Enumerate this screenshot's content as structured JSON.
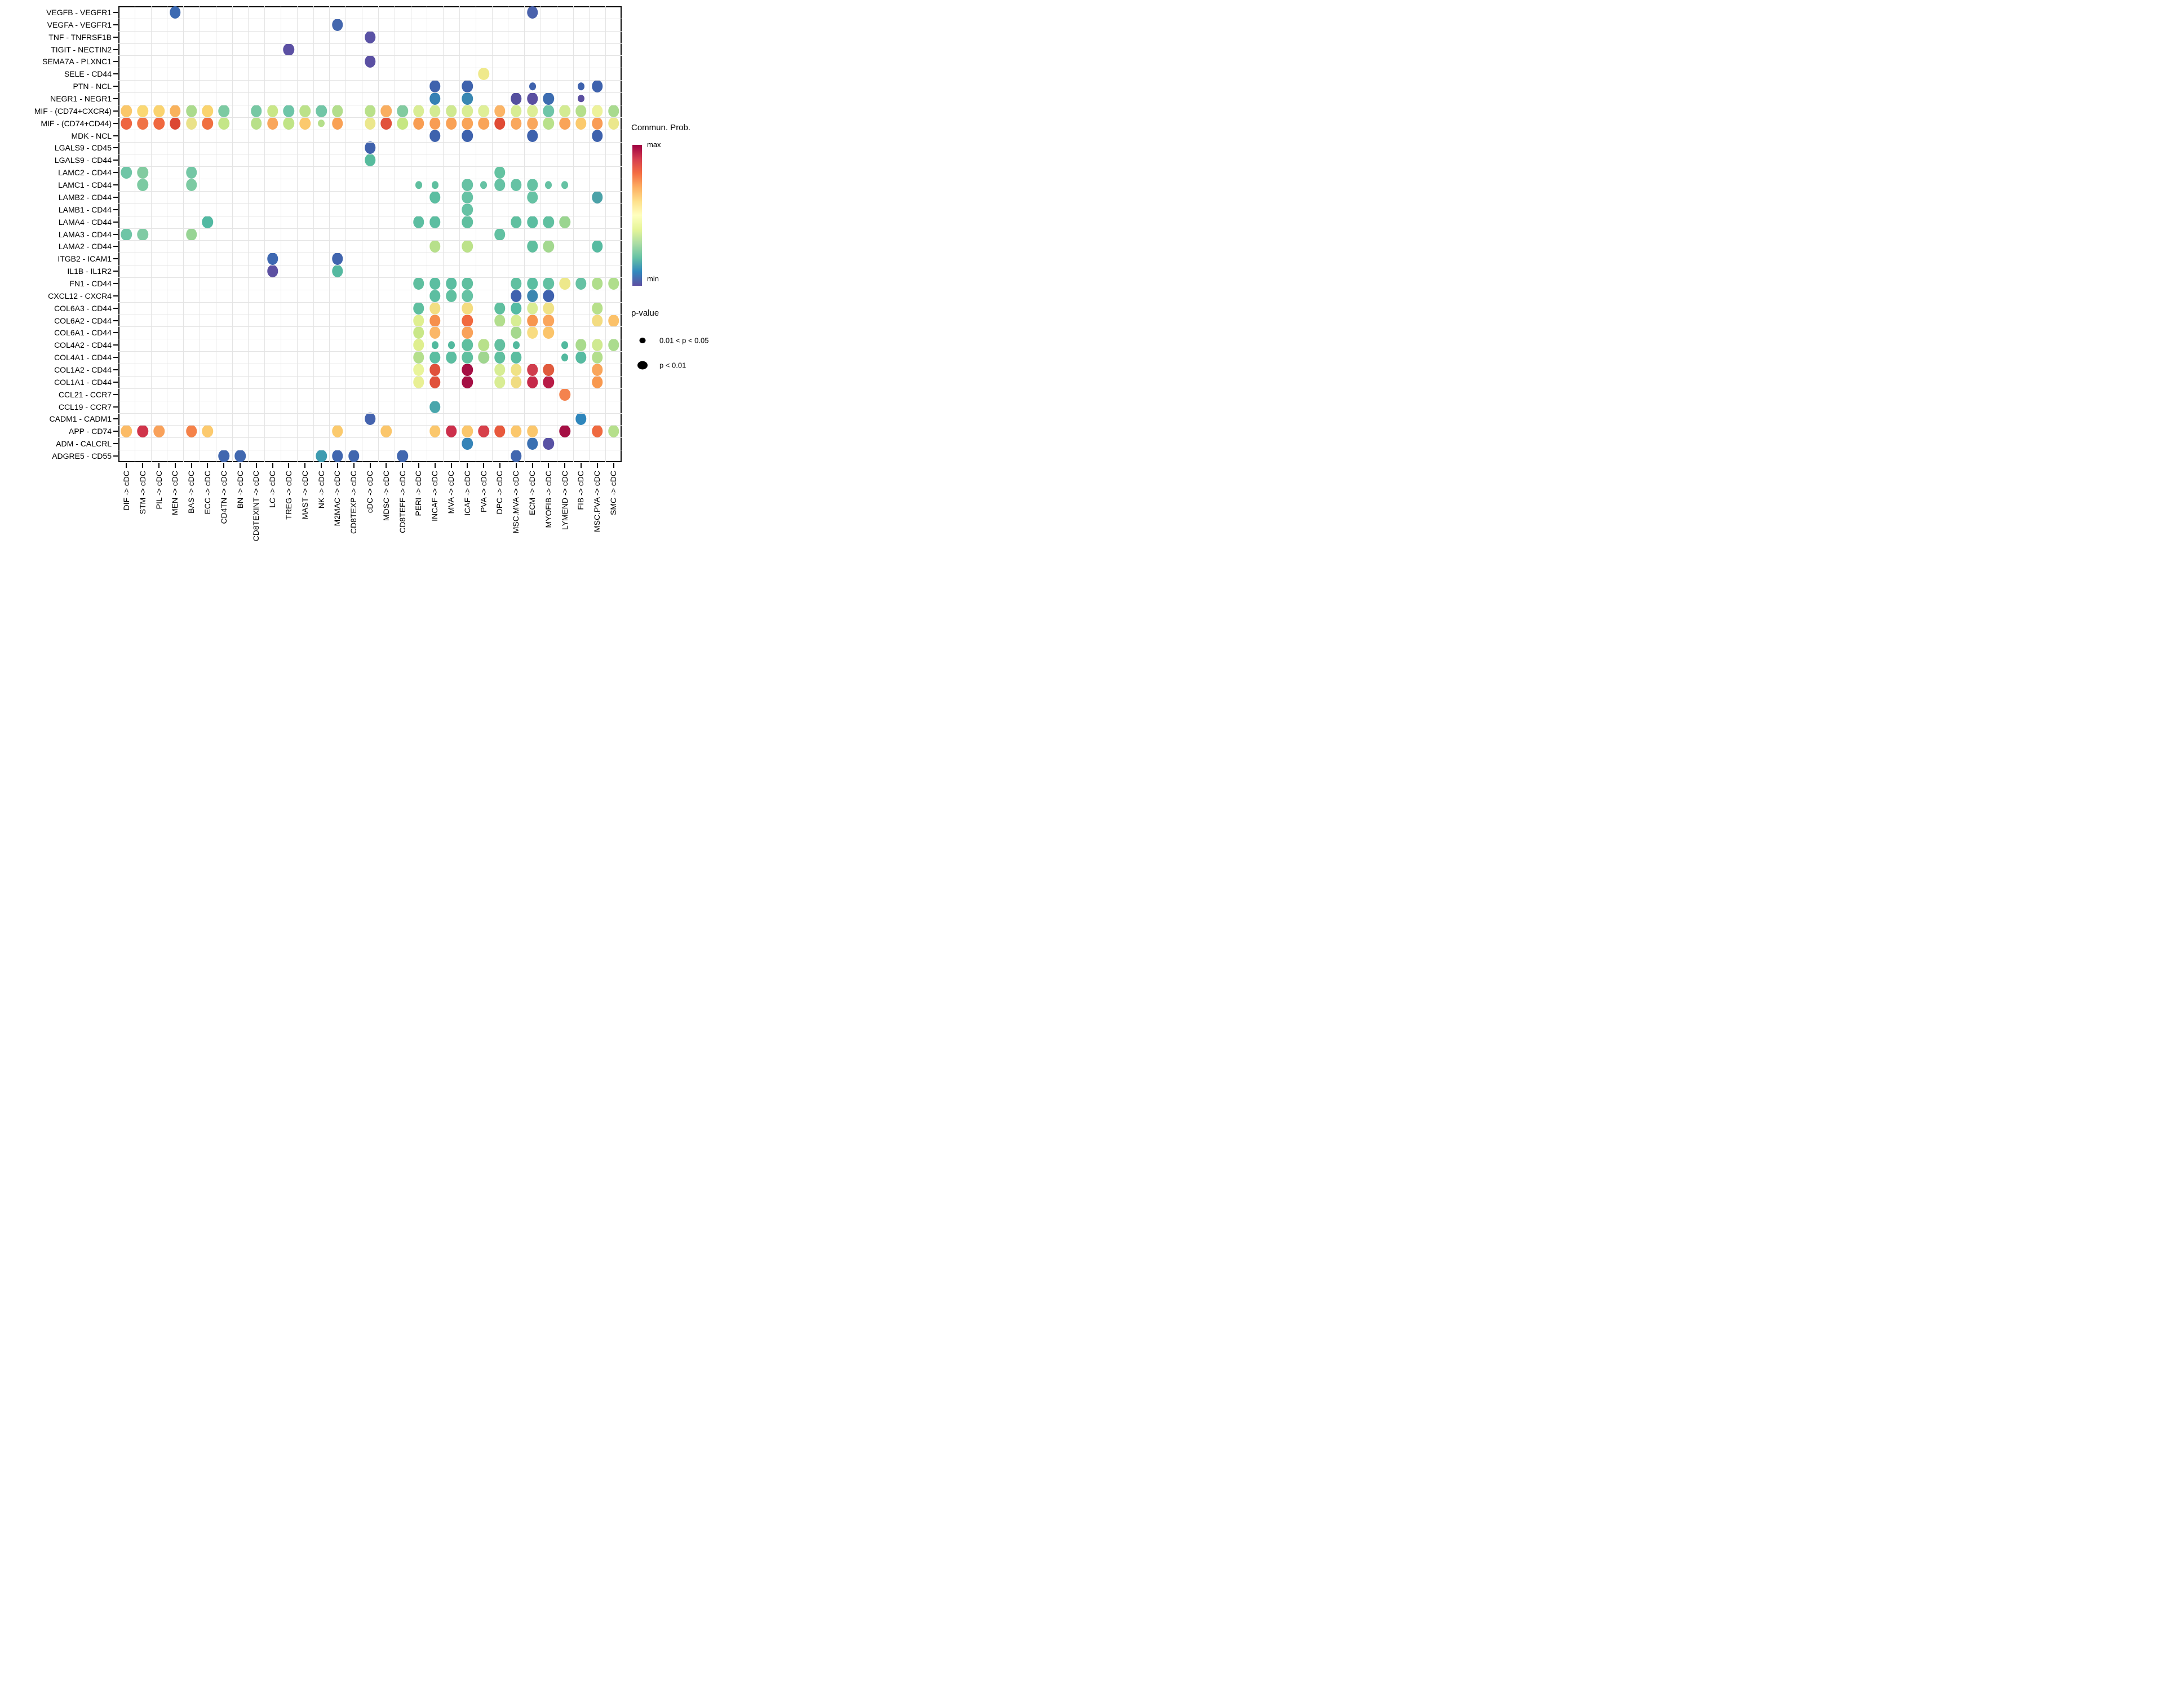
{
  "chart_data": {
    "type": "scatter",
    "subtype": "bubble-dotplot-cell-communication",
    "title": "",
    "xlabel": "",
    "ylabel": "",
    "x_short": [
      "DIF",
      "STM",
      "PIL",
      "MEN",
      "BAS",
      "ECC",
      "CD4TN",
      "BN",
      "CD8TEXINT",
      "LC",
      "TREG",
      "MAST",
      "NK",
      "M2MAC",
      "CD8TEXP",
      "cDC",
      "MDSC",
      "CD8TEFF",
      "PERI",
      "INCAF",
      "MVA",
      "ICAF",
      "PVA",
      "DPC",
      "MSC.MVA",
      "ECM",
      "MYOFIB",
      "LYMEND",
      "FIB",
      "MSC.PVA",
      "SMC"
    ],
    "x_categories": [
      "DIF -> cDC",
      "STM -> cDC",
      "PIL -> cDC",
      "MEN -> cDC",
      "BAS -> cDC",
      "ECC -> cDC",
      "CD4TN -> cDC",
      "BN -> cDC",
      "CD8TEXINT -> cDC",
      "LC -> cDC",
      "TREG -> cDC",
      "MAST -> cDC",
      "NK -> cDC",
      "M2MAC -> cDC",
      "CD8TEXP -> cDC",
      "cDC -> cDC",
      "MDSC -> cDC",
      "CD8TEFF -> cDC",
      "PERI -> cDC",
      "INCAF -> cDC",
      "MVA -> cDC",
      "ICAF -> cDC",
      "PVA -> cDC",
      "DPC -> cDC",
      "MSC.MVA -> cDC",
      "ECM -> cDC",
      "MYOFIB -> cDC",
      "LYMEND -> cDC",
      "FIB -> cDC",
      "MSC.PVA -> cDC",
      "SMC -> cDC"
    ],
    "y_categories": [
      "VEGFB - VEGFR1",
      "VEGFA - VEGFR1",
      "TNF - TNFRSF1B",
      "TIGIT - NECTIN2",
      "SEMA7A - PLXNC1",
      "SELE - CD44",
      "PTN - NCL",
      "NEGR1 - NEGR1",
      "MIF - (CD74+CXCR4)",
      "MIF - (CD74+CD44)",
      "MDK - NCL",
      "LGALS9 - CD45",
      "LGALS9 - CD44",
      "LAMC2 - CD44",
      "LAMC1 - CD44",
      "LAMB2 - CD44",
      "LAMB1 - CD44",
      "LAMA4 - CD44",
      "LAMA3 - CD44",
      "LAMA2 - CD44",
      "ITGB2 - ICAM1",
      "IL1B - IL1R2",
      "FN1 - CD44",
      "CXCL12 - CXCR4",
      "COL6A3 - CD44",
      "COL6A2 - CD44",
      "COL6A1 - CD44",
      "COL4A2 - CD44",
      "COL4A1 - CD44",
      "COL1A2 - CD44",
      "COL1A1 - CD44",
      "CCL21 - CCR7",
      "CCL19 - CCR7",
      "CADM1 - CADM1",
      "APP - CD74",
      "ADM - CALCRL",
      "ADGRE5 - CD55"
    ],
    "size_encoding": {
      "L": "p < 0.01",
      "S": "0.01 < p < 0.05"
    },
    "color_encoding": "Commun. Prob. (min = blue/purple, max = dark red)",
    "points": [
      [
        0,
        3,
        "#3C6AB2",
        "L"
      ],
      [
        0,
        25,
        "#4A62AC",
        "L"
      ],
      [
        1,
        13,
        "#4467AE",
        "L"
      ],
      [
        2,
        15,
        "#5A52A5",
        "L"
      ],
      [
        3,
        10,
        "#5B50A3",
        "L"
      ],
      [
        4,
        15,
        "#5B50A3",
        "L"
      ],
      [
        5,
        22,
        "#EFE98B",
        "L"
      ],
      [
        6,
        19,
        "#3E62AD",
        "L"
      ],
      [
        6,
        21,
        "#3E62AD",
        "L"
      ],
      [
        6,
        25,
        "#3E62AD",
        "S"
      ],
      [
        6,
        28,
        "#3E62AD",
        "S"
      ],
      [
        6,
        29,
        "#3E62AD",
        "L"
      ],
      [
        7,
        19,
        "#3580B4",
        "L"
      ],
      [
        7,
        21,
        "#3987B2",
        "L"
      ],
      [
        7,
        24,
        "#55509F",
        "L"
      ],
      [
        7,
        25,
        "#5A4FA1",
        "L"
      ],
      [
        7,
        26,
        "#3C6CB0",
        "L"
      ],
      [
        7,
        28,
        "#5B4FA0",
        "S"
      ],
      [
        8,
        0,
        "#FAC76A",
        "L"
      ],
      [
        8,
        1,
        "#FAD873",
        "L"
      ],
      [
        8,
        2,
        "#FAD36F",
        "L"
      ],
      [
        8,
        3,
        "#F9B25C",
        "L"
      ],
      [
        8,
        4,
        "#ABDB8D",
        "L"
      ],
      [
        8,
        5,
        "#FAD46F",
        "L"
      ],
      [
        8,
        6,
        "#7CCAA2",
        "L"
      ],
      [
        8,
        8,
        "#77C8A3",
        "L"
      ],
      [
        8,
        9,
        "#C9E788",
        "L"
      ],
      [
        8,
        10,
        "#6EC5A8",
        "L"
      ],
      [
        8,
        11,
        "#BCE28A",
        "L"
      ],
      [
        8,
        12,
        "#72C6A6",
        "L"
      ],
      [
        8,
        13,
        "#B3DE8C",
        "L"
      ],
      [
        8,
        15,
        "#B9E18A",
        "L"
      ],
      [
        8,
        16,
        "#F9AE60",
        "L"
      ],
      [
        8,
        17,
        "#82CBA0",
        "L"
      ],
      [
        8,
        18,
        "#D9ED94",
        "L"
      ],
      [
        8,
        19,
        "#D3EB92",
        "L"
      ],
      [
        8,
        20,
        "#CFE990",
        "L"
      ],
      [
        8,
        21,
        "#D9ED94",
        "L"
      ],
      [
        8,
        22,
        "#DFEF97",
        "L"
      ],
      [
        8,
        23,
        "#FBB466",
        "L"
      ],
      [
        8,
        24,
        "#D7EC93",
        "L"
      ],
      [
        8,
        25,
        "#DDEE96",
        "L"
      ],
      [
        8,
        26,
        "#6EC5A8",
        "L"
      ],
      [
        8,
        27,
        "#D3EB92",
        "L"
      ],
      [
        8,
        28,
        "#B5DF8B",
        "L"
      ],
      [
        8,
        29,
        "#EDF29B",
        "L"
      ],
      [
        8,
        30,
        "#A8DA8E",
        "L"
      ],
      [
        9,
        0,
        "#EE6540",
        "L"
      ],
      [
        9,
        1,
        "#F07346",
        "L"
      ],
      [
        9,
        2,
        "#F0683F",
        "L"
      ],
      [
        9,
        3,
        "#DC4834",
        "L"
      ],
      [
        9,
        4,
        "#EAE289",
        "L"
      ],
      [
        9,
        5,
        "#F07040",
        "L"
      ],
      [
        9,
        6,
        "#C4E687",
        "L"
      ],
      [
        9,
        8,
        "#B8E08A",
        "L"
      ],
      [
        9,
        9,
        "#F9A75C",
        "L"
      ],
      [
        9,
        10,
        "#C0E486",
        "L"
      ],
      [
        9,
        11,
        "#FBC96D",
        "L"
      ],
      [
        9,
        12,
        "#B5DF8B",
        "S"
      ],
      [
        9,
        13,
        "#F9A155",
        "L"
      ],
      [
        9,
        15,
        "#EBE78C",
        "L"
      ],
      [
        9,
        16,
        "#E1523C",
        "L"
      ],
      [
        9,
        17,
        "#C6E783",
        "L"
      ],
      [
        9,
        18,
        "#F89D53",
        "L"
      ],
      [
        9,
        19,
        "#F89D53",
        "L"
      ],
      [
        9,
        20,
        "#F9A155",
        "L"
      ],
      [
        9,
        21,
        "#F9A458",
        "L"
      ],
      [
        9,
        22,
        "#F9A458",
        "L"
      ],
      [
        9,
        23,
        "#E04B35",
        "L"
      ],
      [
        9,
        24,
        "#F9A75C",
        "L"
      ],
      [
        9,
        25,
        "#F9A75C",
        "L"
      ],
      [
        9,
        26,
        "#B9E18B",
        "L"
      ],
      [
        9,
        27,
        "#F9A458",
        "L"
      ],
      [
        9,
        28,
        "#FBCA6D",
        "L"
      ],
      [
        9,
        29,
        "#F99C55",
        "L"
      ],
      [
        9,
        30,
        "#EBE78C",
        "L"
      ],
      [
        10,
        19,
        "#3E62AD",
        "L"
      ],
      [
        10,
        21,
        "#3E62AD",
        "L"
      ],
      [
        10,
        25,
        "#3E62AD",
        "L"
      ],
      [
        10,
        29,
        "#3E62AD",
        "L"
      ],
      [
        11,
        15,
        "#3F61AC",
        "L"
      ],
      [
        12,
        15,
        "#57BC9D",
        "L"
      ],
      [
        13,
        0,
        "#6FC5A6",
        "L"
      ],
      [
        13,
        1,
        "#82CBA0",
        "L"
      ],
      [
        13,
        4,
        "#74C7A5",
        "L"
      ],
      [
        13,
        23,
        "#64C3A1",
        "L"
      ],
      [
        14,
        1,
        "#7CCAA2",
        "L"
      ],
      [
        14,
        4,
        "#7CCAA2",
        "L"
      ],
      [
        14,
        18,
        "#5FBF9F",
        "S"
      ],
      [
        14,
        19,
        "#5FBF9F",
        "S"
      ],
      [
        14,
        21,
        "#66C2A4",
        "L"
      ],
      [
        14,
        22,
        "#66C2A4",
        "S"
      ],
      [
        14,
        23,
        "#66C2A4",
        "L"
      ],
      [
        14,
        24,
        "#66C2A4",
        "L"
      ],
      [
        14,
        25,
        "#66C2A4",
        "L"
      ],
      [
        14,
        26,
        "#66C2A4",
        "S"
      ],
      [
        14,
        27,
        "#66C2A4",
        "S"
      ],
      [
        15,
        19,
        "#5CBEA1",
        "L"
      ],
      [
        15,
        21,
        "#66C2A4",
        "L"
      ],
      [
        15,
        25,
        "#66C2A4",
        "L"
      ],
      [
        15,
        29,
        "#4BA2A8",
        "L"
      ],
      [
        16,
        21,
        "#66C2A4",
        "L"
      ],
      [
        17,
        5,
        "#52B9A2",
        "L"
      ],
      [
        17,
        18,
        "#5CBEA1",
        "L"
      ],
      [
        17,
        19,
        "#5CBEA1",
        "L"
      ],
      [
        17,
        21,
        "#5FBF9F",
        "L"
      ],
      [
        17,
        24,
        "#60C0A0",
        "L"
      ],
      [
        17,
        25,
        "#5CBEA1",
        "L"
      ],
      [
        17,
        26,
        "#60C0A0",
        "L"
      ],
      [
        17,
        27,
        "#9AD590",
        "L"
      ],
      [
        18,
        0,
        "#6FC5A6",
        "L"
      ],
      [
        18,
        1,
        "#80CBA4",
        "L"
      ],
      [
        18,
        4,
        "#97D494",
        "L"
      ],
      [
        18,
        23,
        "#62C1A2",
        "L"
      ],
      [
        19,
        19,
        "#B7E08B",
        "L"
      ],
      [
        19,
        21,
        "#BCE28A",
        "L"
      ],
      [
        19,
        25,
        "#5FBF9F",
        "L"
      ],
      [
        19,
        26,
        "#A3D88F",
        "L"
      ],
      [
        19,
        29,
        "#57BBA1",
        "L"
      ],
      [
        20,
        9,
        "#3E68B1",
        "L"
      ],
      [
        20,
        13,
        "#4165AE",
        "L"
      ],
      [
        21,
        9,
        "#5D50A2",
        "L"
      ],
      [
        21,
        13,
        "#55B9A0",
        "L"
      ],
      [
        22,
        18,
        "#5FBF9F",
        "L"
      ],
      [
        22,
        19,
        "#5CBEA1",
        "L"
      ],
      [
        22,
        20,
        "#5CBEA1",
        "L"
      ],
      [
        22,
        21,
        "#5FBF9F",
        "L"
      ],
      [
        22,
        24,
        "#60C0A0",
        "L"
      ],
      [
        22,
        25,
        "#5CBEA1",
        "L"
      ],
      [
        22,
        26,
        "#62C1A2",
        "L"
      ],
      [
        22,
        27,
        "#EDE88B",
        "L"
      ],
      [
        22,
        28,
        "#66C2A4",
        "L"
      ],
      [
        22,
        29,
        "#B0DE8C",
        "L"
      ],
      [
        22,
        30,
        "#B0DE8C",
        "L"
      ],
      [
        23,
        19,
        "#5CBEA1",
        "L"
      ],
      [
        23,
        20,
        "#60C0A0",
        "L"
      ],
      [
        23,
        21,
        "#66C2A4",
        "L"
      ],
      [
        23,
        24,
        "#3F62AE",
        "L"
      ],
      [
        23,
        25,
        "#3C87B0",
        "L"
      ],
      [
        23,
        26,
        "#3F62AE",
        "L"
      ],
      [
        24,
        18,
        "#5FBF9F",
        "L"
      ],
      [
        24,
        19,
        "#F2DE82",
        "L"
      ],
      [
        24,
        21,
        "#F4DC80",
        "L"
      ],
      [
        24,
        23,
        "#5FBF9F",
        "L"
      ],
      [
        24,
        24,
        "#55BBA3",
        "L"
      ],
      [
        24,
        25,
        "#D9ED94",
        "L"
      ],
      [
        24,
        26,
        "#F0E286",
        "L"
      ],
      [
        24,
        29,
        "#B7E08B",
        "L"
      ],
      [
        25,
        18,
        "#DFEF8F",
        "L"
      ],
      [
        25,
        19,
        "#F6904D",
        "L"
      ],
      [
        25,
        21,
        "#F1693F",
        "L"
      ],
      [
        25,
        23,
        "#B2DE8D",
        "L"
      ],
      [
        25,
        24,
        "#D7ED94",
        "L"
      ],
      [
        25,
        25,
        "#F7964F",
        "L"
      ],
      [
        25,
        26,
        "#FAA55B",
        "L"
      ],
      [
        25,
        29,
        "#F3DC81",
        "L"
      ],
      [
        25,
        30,
        "#FBC169",
        "L"
      ],
      [
        26,
        18,
        "#C9E788",
        "L"
      ],
      [
        26,
        19,
        "#FBB768",
        "L"
      ],
      [
        26,
        21,
        "#F9A25A",
        "L"
      ],
      [
        26,
        24,
        "#A5D88E",
        "L"
      ],
      [
        26,
        25,
        "#F8DC81",
        "L"
      ],
      [
        26,
        26,
        "#FBC46A",
        "L"
      ],
      [
        27,
        18,
        "#DFEF8F",
        "L"
      ],
      [
        27,
        19,
        "#52B99E",
        "S"
      ],
      [
        27,
        20,
        "#52B99E",
        "S"
      ],
      [
        27,
        21,
        "#5FBF9F",
        "L"
      ],
      [
        27,
        22,
        "#B8E18B",
        "L"
      ],
      [
        27,
        23,
        "#62C0A0",
        "L"
      ],
      [
        27,
        24,
        "#52B99E",
        "S"
      ],
      [
        27,
        27,
        "#52B99E",
        "S"
      ],
      [
        27,
        28,
        "#A9DB8D",
        "L"
      ],
      [
        27,
        29,
        "#CFEA91",
        "L"
      ],
      [
        27,
        30,
        "#ABDC8E",
        "L"
      ],
      [
        28,
        18,
        "#B4DF8C",
        "L"
      ],
      [
        28,
        19,
        "#5CBEA1",
        "L"
      ],
      [
        28,
        20,
        "#5CBEA1",
        "L"
      ],
      [
        28,
        21,
        "#5FBF9F",
        "L"
      ],
      [
        28,
        22,
        "#A0D690",
        "L"
      ],
      [
        28,
        23,
        "#5FBF9F",
        "L"
      ],
      [
        28,
        24,
        "#5BBDA0",
        "L"
      ],
      [
        28,
        27,
        "#52B99E",
        "S"
      ],
      [
        28,
        28,
        "#57BBA1",
        "L"
      ],
      [
        28,
        29,
        "#B3DE8C",
        "L"
      ],
      [
        29,
        18,
        "#E9F49A",
        "L"
      ],
      [
        29,
        19,
        "#E0513B",
        "L"
      ],
      [
        29,
        21,
        "#A50F44",
        "L"
      ],
      [
        29,
        23,
        "#D7ED94",
        "L"
      ],
      [
        29,
        24,
        "#F0E286",
        "L"
      ],
      [
        29,
        25,
        "#D03D4D",
        "L"
      ],
      [
        29,
        26,
        "#E05A3D",
        "L"
      ],
      [
        29,
        29,
        "#F9A55B",
        "L"
      ],
      [
        30,
        18,
        "#E9F094",
        "L"
      ],
      [
        30,
        19,
        "#E0513B",
        "L"
      ],
      [
        30,
        21,
        "#A50F44",
        "L"
      ],
      [
        30,
        23,
        "#D9ED94",
        "L"
      ],
      [
        30,
        24,
        "#F0DC82",
        "L"
      ],
      [
        30,
        25,
        "#C62A4A",
        "L"
      ],
      [
        30,
        26,
        "#B81B46",
        "L"
      ],
      [
        30,
        29,
        "#F8984F",
        "L"
      ],
      [
        31,
        27,
        "#F4834E",
        "L"
      ],
      [
        32,
        19,
        "#49A6AC",
        "L"
      ],
      [
        33,
        15,
        "#4463AE",
        "L"
      ],
      [
        33,
        28,
        "#2E86BC",
        "L"
      ],
      [
        34,
        0,
        "#FBBB66",
        "L"
      ],
      [
        34,
        1,
        "#D0344A",
        "L"
      ],
      [
        34,
        2,
        "#F9A15A",
        "L"
      ],
      [
        34,
        4,
        "#F58249",
        "L"
      ],
      [
        34,
        5,
        "#FCCA6E",
        "L"
      ],
      [
        34,
        13,
        "#FBCA6D",
        "L"
      ],
      [
        34,
        16,
        "#FBC66B",
        "L"
      ],
      [
        34,
        19,
        "#FBC76C",
        "L"
      ],
      [
        34,
        20,
        "#CC2F4B",
        "L"
      ],
      [
        34,
        21,
        "#FBC76C",
        "L"
      ],
      [
        34,
        22,
        "#D7404A",
        "L"
      ],
      [
        34,
        23,
        "#E8593C",
        "L"
      ],
      [
        34,
        24,
        "#FBC76C",
        "L"
      ],
      [
        34,
        25,
        "#FBC76C",
        "L"
      ],
      [
        34,
        27,
        "#A50F44",
        "L"
      ],
      [
        34,
        29,
        "#EF6A40",
        "L"
      ],
      [
        34,
        30,
        "#B5DF8B",
        "L"
      ],
      [
        35,
        21,
        "#3684B8",
        "L"
      ],
      [
        35,
        25,
        "#3A70B2",
        "L"
      ],
      [
        35,
        26,
        "#5952A4",
        "L"
      ],
      [
        36,
        6,
        "#4167AF",
        "L"
      ],
      [
        36,
        7,
        "#4168B0",
        "L"
      ],
      [
        36,
        12,
        "#3D9BB0",
        "L"
      ],
      [
        36,
        13,
        "#4167AF",
        "L"
      ],
      [
        36,
        14,
        "#4167AF",
        "L"
      ],
      [
        36,
        17,
        "#4167AF",
        "L"
      ],
      [
        36,
        24,
        "#4167AF",
        "L"
      ]
    ],
    "legend_position": "right"
  },
  "legend": {
    "colorbar_title": "Commun. Prob.",
    "max_label": "max",
    "min_label": "min",
    "colorbar_colors": [
      "#9E0142",
      "#D53E4F",
      "#F46D43",
      "#FDAE61",
      "#FEE08B",
      "#FFFFBF",
      "#E6F598",
      "#ABDDA4",
      "#66C2A5",
      "#3288BD",
      "#5E4FA2"
    ],
    "pvalue_title": "p-value",
    "pvalue_items": [
      {
        "label": "0.01 < p < 0.05",
        "size": "S"
      },
      {
        "label": "p < 0.01",
        "size": "L"
      }
    ]
  },
  "colors": {
    "panel_border": "#0a0a0a",
    "gridline": "#e4e4e4",
    "background": "#ffffff"
  }
}
